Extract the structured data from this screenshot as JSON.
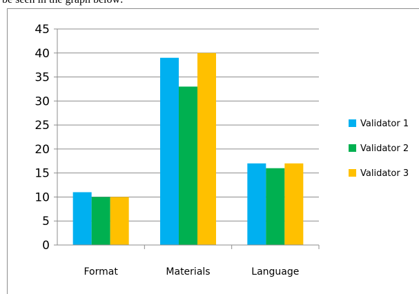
{
  "caption": "be seen in the graph below:",
  "chart_data": {
    "type": "bar",
    "categories": [
      "Format",
      "Materials",
      "Language"
    ],
    "series": [
      {
        "name": "Validator 1",
        "color": "#00b0f0",
        "values": [
          11,
          39,
          17
        ]
      },
      {
        "name": "Validator 2",
        "color": "#00b050",
        "values": [
          10,
          33,
          16
        ]
      },
      {
        "name": "Validator 3",
        "color": "#ffc000",
        "values": [
          10,
          40,
          17
        ]
      }
    ],
    "title": "",
    "xlabel": "",
    "ylabel": "",
    "ylim": [
      0,
      45
    ],
    "yticks": [
      0,
      5,
      10,
      15,
      20,
      25,
      30,
      35,
      40,
      45
    ],
    "grid": true,
    "legend_position": "right"
  }
}
